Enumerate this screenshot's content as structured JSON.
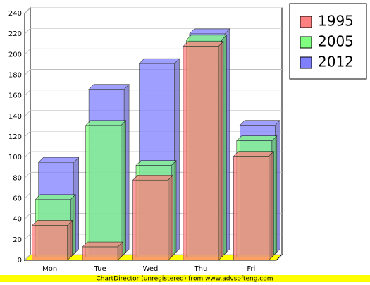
{
  "chart_data": {
    "type": "bar3d",
    "categories": [
      "Mon",
      "Tue",
      "Wed",
      "Thu",
      "Fri"
    ],
    "series": [
      {
        "name": "1995",
        "color": "#ff8080",
        "values": [
          34,
          13,
          78,
          208,
          101
        ]
      },
      {
        "name": "2005",
        "color": "#80ff80",
        "values": [
          56,
          128,
          89,
          211,
          113
        ]
      },
      {
        "name": "2012",
        "color": "#8080ff",
        "values": [
          89,
          160,
          185,
          214,
          125
        ]
      }
    ],
    "ylim": [
      0,
      240
    ],
    "yticks": [
      0,
      20,
      40,
      60,
      80,
      100,
      120,
      140,
      160,
      180,
      200,
      220,
      240
    ],
    "grid": true,
    "legend": "right",
    "footer": "ChartDirector (unregistered) from www.advsofteng.com"
  }
}
